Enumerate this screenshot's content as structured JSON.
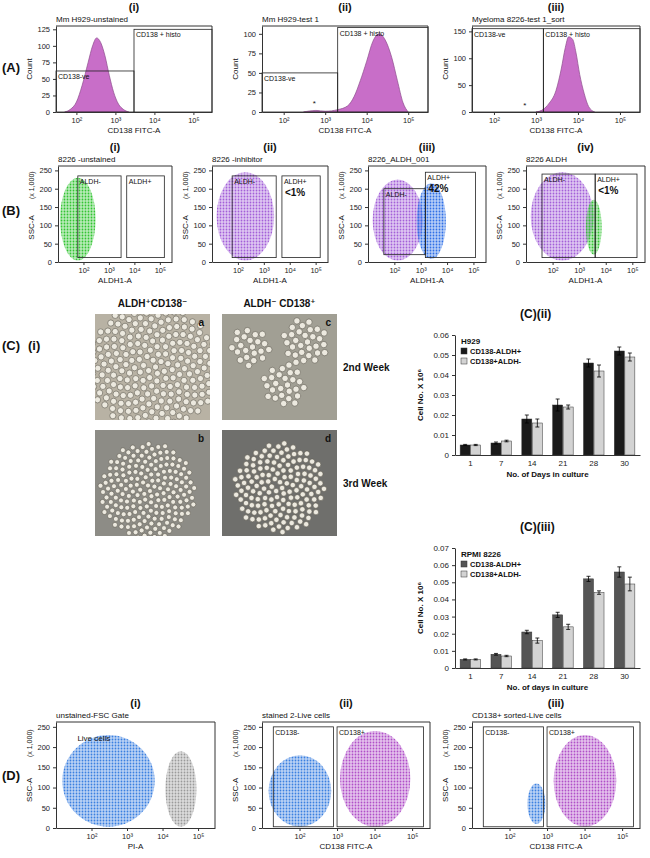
{
  "panels": [
    {
      "label": "(A)",
      "sublabels": [
        "(i)",
        "(ii)",
        "(iii)"
      ]
    },
    {
      "label": "(B)",
      "sublabels": [
        "(i)",
        "(ii)",
        "(iii)",
        "(iv)"
      ]
    },
    {
      "label": "(C)",
      "sublabels": [
        "(i)"
      ]
    },
    {
      "label": "(D)",
      "sublabels": [
        "(i)",
        "(ii)",
        "(iii)"
      ]
    }
  ],
  "micrographs": {
    "columns": [
      "ALDH⁺CD138⁻",
      "ALDH⁻ CD138⁺"
    ],
    "rows": [
      "2nd Week",
      "3rd Week"
    ],
    "cells": [
      [
        "a",
        "c"
      ],
      [
        "b",
        "d"
      ]
    ]
  },
  "chart_data": [
    {
      "type": "area",
      "title": "Mm H929-unstained",
      "x_label": "CD138 FITC-A",
      "y_label": "Count",
      "log": "x",
      "color": "#c86ec8",
      "x": [
        50,
        70,
        100,
        140,
        200,
        260,
        330,
        420,
        540,
        700,
        900,
        1200,
        1600,
        2200
      ],
      "values": [
        0,
        4,
        15,
        40,
        75,
        100,
        112,
        105,
        85,
        55,
        30,
        12,
        4,
        0
      ],
      "xlim": [
        30,
        300000
      ],
      "xticks": [
        {
          "value": 100,
          "label": "10²"
        },
        {
          "value": 1000,
          "label": "10³"
        },
        {
          "value": 10000,
          "label": "10⁴"
        },
        {
          "value": 100000,
          "label": "10⁵"
        }
      ],
      "ylim": [
        0,
        130
      ],
      "yticks": [
        0,
        25,
        50,
        75,
        100,
        125
      ],
      "gates": [
        {
          "label": "CD138-ve",
          "x": [
            30,
            3000
          ],
          "y": [
            0,
            62
          ]
        },
        {
          "label": "CD138 + histo",
          "x": [
            3000,
            300000
          ],
          "y": [
            0,
            125
          ]
        }
      ]
    },
    {
      "type": "area",
      "title": "Mm H929-test 1",
      "x_label": "CD138 FITC-A",
      "y_label": "Count",
      "log": "x",
      "color": "#c86ec8",
      "x": [
        300,
        600,
        1000,
        2000,
        3500,
        5000,
        7000,
        10000,
        14000,
        20000,
        28000,
        40000,
        55000,
        75000,
        100000
      ],
      "values": [
        0,
        2,
        1,
        3,
        8,
        20,
        40,
        65,
        90,
        100,
        92,
        70,
        40,
        12,
        0
      ],
      "xlim": [
        30,
        300000
      ],
      "xticks": [
        {
          "value": 100,
          "label": "10²"
        },
        {
          "value": 1000,
          "label": "10³"
        },
        {
          "value": 10000,
          "label": "10⁴"
        },
        {
          "value": 100000,
          "label": "10⁵"
        }
      ],
      "ylim": [
        0,
        110
      ],
      "yticks": [
        0,
        25,
        50,
        75,
        100
      ],
      "gates": [
        {
          "label": "CD138-ve",
          "x": [
            30,
            2000
          ],
          "y": [
            0,
            50
          ]
        },
        {
          "label": "CD138 + histo",
          "x": [
            2000,
            300000
          ],
          "y": [
            0,
            108
          ]
        }
      ],
      "annotations": [
        {
          "text": "*",
          "x": 500,
          "y": 8
        }
      ]
    },
    {
      "type": "area",
      "title": "Myeloma 8226-test 1_sort",
      "x_label": "CD138 FITC-A",
      "y_label": "Count",
      "log": "x",
      "color": "#c86ec8",
      "x": [
        1000,
        1500,
        2000,
        3000,
        4000,
        5000,
        6000,
        7500,
        9000,
        11000,
        14000,
        18000,
        25000
      ],
      "values": [
        0,
        5,
        15,
        40,
        80,
        120,
        140,
        135,
        110,
        70,
        35,
        10,
        0
      ],
      "xlim": [
        30,
        300000
      ],
      "xticks": [
        {
          "value": 100,
          "label": "10²"
        },
        {
          "value": 1000,
          "label": "10³"
        },
        {
          "value": 10000,
          "label": "10⁴"
        },
        {
          "value": 100000,
          "label": "10⁵"
        }
      ],
      "ylim": [
        0,
        160
      ],
      "yticks": [
        0,
        50,
        100,
        150
      ],
      "gates": [
        {
          "label": "CD138-ve",
          "x": [
            30,
            1500
          ],
          "y": [
            0,
            155
          ]
        },
        {
          "label": "CD138 + histo",
          "x": [
            1500,
            300000
          ],
          "y": [
            0,
            155
          ]
        }
      ],
      "annotations": [
        {
          "text": "*",
          "x": 500,
          "y": 8
        }
      ]
    },
    {
      "type": "dotplot",
      "title": "8226 -unstained",
      "x_label": "ALDH1-A",
      "y_label": "SSC-A",
      "y_unit": "(x 1,000)",
      "log": "x",
      "xlim": [
        10,
        300000
      ],
      "xticks": [
        {
          "value": 100,
          "label": "10²"
        },
        {
          "value": 1000,
          "label": "10³"
        },
        {
          "value": 10000,
          "label": "10⁴"
        },
        {
          "value": 100000,
          "label": "10⁵"
        }
      ],
      "ylim": [
        0,
        262
      ],
      "yticks": [
        0,
        50,
        100,
        150,
        200,
        250
      ],
      "populations": [
        {
          "color": "#33c433",
          "x": [
            12,
            300
          ],
          "y": [
            4,
            230
          ]
        }
      ],
      "gates": [
        {
          "label": "ALDH-",
          "x": [
            60,
            3000
          ],
          "y": [
            12,
            235
          ]
        },
        {
          "label": "ALDH+",
          "x": [
            5000,
            150000
          ],
          "y": [
            12,
            235
          ]
        }
      ]
    },
    {
      "type": "dotplot",
      "title": "8226 -inhibitor",
      "x_label": "ALDH1-A",
      "y_label": "SSC-A",
      "y_unit": "(x 1,000)",
      "log": "x",
      "xlim": [
        10,
        300000
      ],
      "xticks": [
        {
          "value": 100,
          "label": "10²"
        },
        {
          "value": 1000,
          "label": "10³"
        },
        {
          "value": 10000,
          "label": "10⁴"
        },
        {
          "value": 100000,
          "label": "10⁵"
        }
      ],
      "ylim": [
        0,
        262
      ],
      "yticks": [
        0,
        50,
        100,
        150,
        200,
        250
      ],
      "populations": [
        {
          "color": "#a35fd8",
          "x": [
            15,
            2500
          ],
          "y": [
            4,
            245
          ]
        }
      ],
      "gates": [
        {
          "label": "ALDH-",
          "x": [
            60,
            3000
          ],
          "y": [
            12,
            235
          ]
        },
        {
          "label": "ALDH+",
          "x": [
            5000,
            150000
          ],
          "y": [
            12,
            235
          ],
          "note": "<1%"
        }
      ]
    },
    {
      "type": "dotplot",
      "title": "8226_ALDH_001",
      "x_label": "ALDH1-A",
      "y_label": "SSC-A",
      "y_unit": "(x 1,000)",
      "log": "x",
      "xlim": [
        10,
        300000
      ],
      "xticks": [
        {
          "value": 100,
          "label": "10²"
        },
        {
          "value": 1000,
          "label": "10³"
        },
        {
          "value": 10000,
          "label": "10⁴"
        },
        {
          "value": 100000,
          "label": "10⁵"
        }
      ],
      "ylim": [
        0,
        262
      ],
      "yticks": [
        0,
        50,
        100,
        150,
        200,
        250
      ],
      "populations": [
        {
          "color": "#a35fd8",
          "x": [
            15,
            1200
          ],
          "y": [
            4,
            225
          ]
        },
        {
          "color": "#2f6fe6",
          "x": [
            700,
            9000
          ],
          "y": [
            8,
            215
          ]
        }
      ],
      "gates": [
        {
          "label": "ALDH-",
          "x": [
            40,
            1500
          ],
          "y": [
            20,
            200
          ]
        },
        {
          "label": "ALDH+",
          "x": [
            1500,
            120000
          ],
          "y": [
            12,
            245
          ],
          "note": "42%"
        }
      ]
    },
    {
      "type": "dotplot",
      "title": "8226 ALDH",
      "x_label": "ALDH1-A",
      "y_label": "SSC-A",
      "y_unit": "(x 1,000)",
      "log": "x",
      "xlim": [
        10,
        300000
      ],
      "xticks": [
        {
          "value": 100,
          "label": "10²"
        },
        {
          "value": 1000,
          "label": "10³"
        },
        {
          "value": 10000,
          "label": "10⁴"
        },
        {
          "value": 100000,
          "label": "10⁵"
        }
      ],
      "ylim": [
        0,
        262
      ],
      "yticks": [
        0,
        50,
        100,
        150,
        200,
        250
      ],
      "populations": [
        {
          "color": "#a35fd8",
          "x": [
            15,
            3500
          ],
          "y": [
            4,
            245
          ]
        },
        {
          "color": "#33c433",
          "x": [
            1800,
            7000
          ],
          "y": [
            20,
            170
          ]
        }
      ],
      "gates": [
        {
          "label": "ALDH-",
          "x": [
            40,
            4000
          ],
          "y": [
            12,
            240
          ]
        },
        {
          "label": "ALDH+",
          "x": [
            4000,
            150000
          ],
          "y": [
            12,
            240
          ],
          "note": "<1%"
        }
      ]
    },
    {
      "type": "bar",
      "panel": "(C)(ii)",
      "title": "H929",
      "x_label": "No. of Days in culture",
      "y_label": "Cell No. X 10⁶",
      "categories": [
        "1",
        "7",
        "14",
        "21",
        "28",
        "30"
      ],
      "series": [
        {
          "name": "CD138-ALDH+",
          "color": "#1a1a1a",
          "values": [
            0.005,
            0.006,
            0.018,
            0.025,
            0.046,
            0.052
          ],
          "errors": [
            0.0003,
            0.0005,
            0.002,
            0.003,
            0.002,
            0.002
          ]
        },
        {
          "name": "CD138+ALDH-",
          "color": "#d3d3d3",
          "values": [
            0.005,
            0.007,
            0.016,
            0.024,
            0.042,
            0.049
          ],
          "errors": [
            0.0003,
            0.0004,
            0.002,
            0.001,
            0.003,
            0.002
          ]
        }
      ],
      "ylim": [
        0,
        0.06
      ],
      "yticks": [
        0,
        0.01,
        0.02,
        0.03,
        0.04,
        0.05,
        0.06
      ],
      "legend": "top-left"
    },
    {
      "type": "bar",
      "panel": "(C)(iii)",
      "title": "RPMI 8226",
      "x_label": "No. of days in culture",
      "y_label": "Cell No. X 10⁶",
      "categories": [
        "1",
        "7",
        "14",
        "21",
        "28",
        "30"
      ],
      "series": [
        {
          "name": "CD138-ALDH+",
          "color": "#555555",
          "values": [
            0.005,
            0.008,
            0.021,
            0.031,
            0.052,
            0.056
          ],
          "errors": [
            0.0003,
            0.0005,
            0.001,
            0.0015,
            0.0015,
            0.003
          ]
        },
        {
          "name": "CD138+ALDH-",
          "color": "#d3d3d3",
          "values": [
            0.005,
            0.007,
            0.016,
            0.024,
            0.044,
            0.049
          ],
          "errors": [
            0.0003,
            0.0004,
            0.0015,
            0.0015,
            0.001,
            0.004
          ]
        }
      ],
      "ylim": [
        0,
        0.07
      ],
      "yticks": [
        0,
        0.01,
        0.02,
        0.03,
        0.04,
        0.05,
        0.06,
        0.07
      ],
      "legend": "top-left"
    },
    {
      "type": "dotplot",
      "title": "unstained-FSC Gate",
      "x_label": "PI-A",
      "y_label": "SSC-A",
      "y_unit": "(x 1,000)",
      "log": "x",
      "xlim": [
        10,
        300000
      ],
      "xticks": [
        {
          "value": 100,
          "label": "10²"
        },
        {
          "value": 1000,
          "label": "10³"
        },
        {
          "value": 10000,
          "label": "10⁴"
        },
        {
          "value": 100000,
          "label": "10⁵"
        }
      ],
      "ylim": [
        0,
        262
      ],
      "yticks": [
        0,
        50,
        100,
        150,
        200,
        250
      ],
      "populations": [
        {
          "color": "#3a7fe0",
          "x": [
            15,
            6000
          ],
          "y": [
            3,
            230
          ]
        },
        {
          "color": "#9a9a9a",
          "x": [
            12000,
            90000
          ],
          "y": [
            3,
            190
          ]
        }
      ],
      "annotations": [
        {
          "text": "Live cells",
          "x": 40,
          "y": 215
        }
      ]
    },
    {
      "type": "dotplot",
      "title": "stained 2-Live cells",
      "x_label": "CD138 FITC-A",
      "y_label": "SSC-A",
      "y_unit": "(x 1,000)",
      "log": "x",
      "xlim": [
        10,
        300000
      ],
      "xticks": [
        {
          "value": 100,
          "label": "10²"
        },
        {
          "value": 1000,
          "label": "10³"
        },
        {
          "value": 10000,
          "label": "10⁴"
        },
        {
          "value": 100000,
          "label": "10⁵"
        }
      ],
      "ylim": [
        0,
        262
      ],
      "yticks": [
        0,
        50,
        100,
        150,
        200,
        250
      ],
      "populations": [
        {
          "color": "#3a7fe0",
          "x": [
            15,
            700
          ],
          "y": [
            3,
            180
          ]
        },
        {
          "color": "#b04fc8",
          "x": [
            1200,
            90000
          ],
          "y": [
            3,
            240
          ]
        }
      ],
      "gates": [
        {
          "label": "CD138-",
          "x": [
            20,
            800
          ],
          "y": [
            3,
            250
          ]
        },
        {
          "label": "CD138+",
          "x": [
            1000,
            200000
          ],
          "y": [
            3,
            250
          ]
        }
      ]
    },
    {
      "type": "dotplot",
      "title": "CD138+ sorted-Live cells",
      "x_label": "CD138 FITC-A",
      "y_label": "SSC-A",
      "y_unit": "(x 1,000)",
      "log": "x",
      "xlim": [
        10,
        300000
      ],
      "xticks": [
        {
          "value": 100,
          "label": "10²"
        },
        {
          "value": 1000,
          "label": "10³"
        },
        {
          "value": 10000,
          "label": "10⁴"
        },
        {
          "value": 100000,
          "label": "10⁵"
        }
      ],
      "ylim": [
        0,
        262
      ],
      "yticks": [
        0,
        50,
        100,
        150,
        200,
        250
      ],
      "populations": [
        {
          "color": "#3a7fe0",
          "x": [
            300,
            900
          ],
          "y": [
            10,
            110
          ]
        },
        {
          "color": "#b04fc8",
          "x": [
            1500,
            70000
          ],
          "y": [
            3,
            230
          ]
        }
      ],
      "gates": [
        {
          "label": "CD138-",
          "x": [
            20,
            800
          ],
          "y": [
            3,
            250
          ]
        },
        {
          "label": "CD138+",
          "x": [
            1000,
            200000
          ],
          "y": [
            3,
            250
          ]
        }
      ]
    }
  ]
}
